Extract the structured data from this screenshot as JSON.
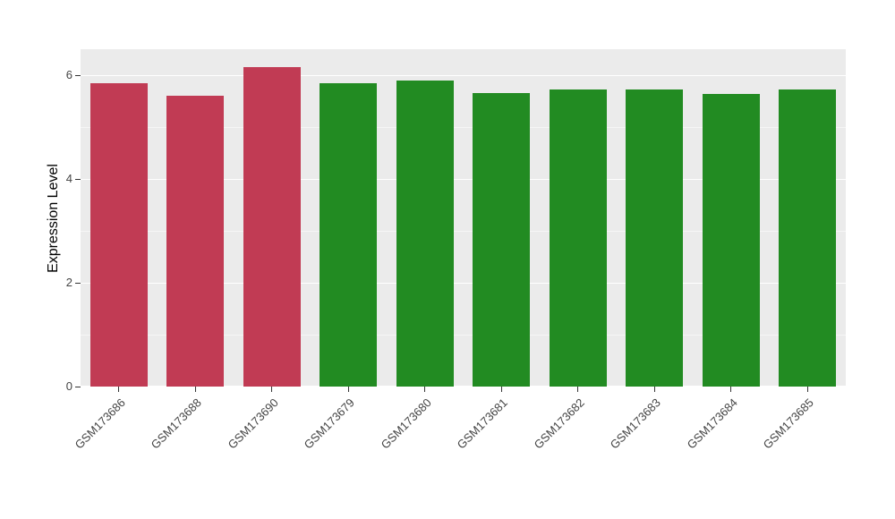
{
  "chart_data": {
    "type": "bar",
    "title": "",
    "xlabel": "",
    "ylabel": "Expression Level",
    "categories": [
      "GSM173686",
      "GSM173688",
      "GSM173690",
      "GSM173679",
      "GSM173680",
      "GSM173681",
      "GSM173682",
      "GSM173683",
      "GSM173684",
      "GSM173685"
    ],
    "values": [
      5.84,
      5.6,
      6.16,
      5.84,
      5.89,
      5.66,
      5.73,
      5.73,
      5.64,
      5.73
    ],
    "bar_colors": [
      "#C13B54",
      "#C13B54",
      "#C13B54",
      "#228B22",
      "#228B22",
      "#228B22",
      "#228B22",
      "#228B22",
      "#228B22",
      "#228B22"
    ],
    "group_colors": {
      "red": "#C13B54",
      "green": "#228B22"
    },
    "yticks": [
      0,
      2,
      4,
      6
    ],
    "yticks_minor": [
      1,
      3,
      5
    ],
    "ylim": [
      0,
      6.5
    ],
    "panel_background": "#EBEBEB",
    "grid_major_color": "#FFFFFF",
    "grid_minor_color": "rgba(255,255,255,0.55)",
    "axis_text_color": "#444444",
    "legend": "none",
    "grid": true
  }
}
